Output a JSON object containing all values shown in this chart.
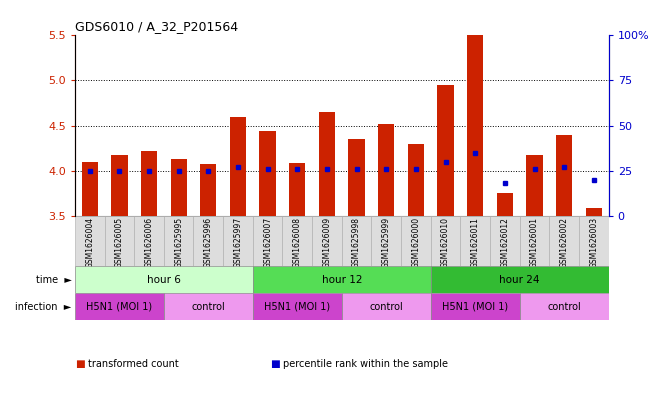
{
  "title": "GDS6010 / A_32_P201564",
  "samples": [
    "GSM1626004",
    "GSM1626005",
    "GSM1626006",
    "GSM1625995",
    "GSM1625996",
    "GSM1625997",
    "GSM1626007",
    "GSM1626008",
    "GSM1626009",
    "GSM1625998",
    "GSM1625999",
    "GSM1626000",
    "GSM1626010",
    "GSM1626011",
    "GSM1626012",
    "GSM1626001",
    "GSM1626002",
    "GSM1626003"
  ],
  "bar_values": [
    4.1,
    4.17,
    4.22,
    4.13,
    4.07,
    4.6,
    4.44,
    4.09,
    4.65,
    4.35,
    4.52,
    4.3,
    4.95,
    5.5,
    3.75,
    4.17,
    4.4,
    3.58
  ],
  "percentile_values": [
    25,
    25,
    25,
    25,
    25,
    27,
    26,
    26,
    26,
    26,
    26,
    26,
    30,
    35,
    18,
    26,
    27,
    20
  ],
  "bar_color": "#cc2200",
  "percentile_color": "#0000cc",
  "ylim_left": [
    3.5,
    5.5
  ],
  "ylim_right": [
    0,
    100
  ],
  "yticks_left": [
    3.5,
    4.0,
    4.5,
    5.0,
    5.5
  ],
  "yticks_right": [
    0,
    25,
    50,
    75,
    100
  ],
  "ytick_labels_right": [
    "0",
    "25",
    "50",
    "75",
    "100%"
  ],
  "grid_lines": [
    4.0,
    4.5,
    5.0
  ],
  "time_groups": [
    {
      "label": "hour 6",
      "start": 0,
      "end": 6,
      "color": "#ccffcc"
    },
    {
      "label": "hour 12",
      "start": 6,
      "end": 12,
      "color": "#55dd55"
    },
    {
      "label": "hour 24",
      "start": 12,
      "end": 18,
      "color": "#33bb33"
    }
  ],
  "infection_groups": [
    {
      "label": "H5N1 (MOI 1)",
      "start": 0,
      "end": 3,
      "color": "#cc44cc"
    },
    {
      "label": "control",
      "start": 3,
      "end": 6,
      "color": "#ee99ee"
    },
    {
      "label": "H5N1 (MOI 1)",
      "start": 6,
      "end": 9,
      "color": "#cc44cc"
    },
    {
      "label": "control",
      "start": 9,
      "end": 12,
      "color": "#ee99ee"
    },
    {
      "label": "H5N1 (MOI 1)",
      "start": 12,
      "end": 15,
      "color": "#cc44cc"
    },
    {
      "label": "control",
      "start": 15,
      "end": 18,
      "color": "#ee99ee"
    }
  ],
  "legend_items": [
    {
      "label": "transformed count",
      "color": "#cc2200"
    },
    {
      "label": "percentile rank within the sample",
      "color": "#0000cc"
    }
  ],
  "axis_color_left": "#cc2200",
  "axis_color_right": "#0000cc",
  "bar_bottom": 3.5,
  "sample_bg": "#dddddd",
  "n": 18
}
